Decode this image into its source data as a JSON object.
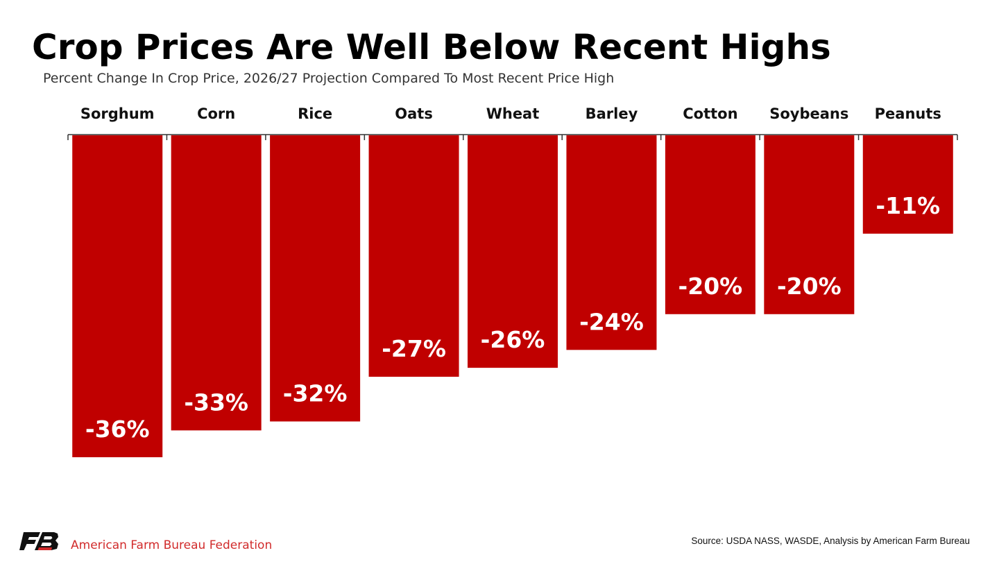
{
  "title": "Crop Prices Are Well Below Recent Highs",
  "subtitle": "Percent Change In Crop Price, 2026/27 Projection Compared To Most Recent Price High",
  "colors": {
    "bar": "#c00000",
    "bar_label": "#ffffff",
    "axis": "#333333",
    "org_text": "#d12b2b"
  },
  "chart_data": {
    "type": "bar",
    "categories": [
      "Sorghum",
      "Corn",
      "Rice",
      "Oats",
      "Wheat",
      "Barley",
      "Cotton",
      "Soybeans",
      "Peanuts"
    ],
    "values": [
      -36,
      -33,
      -32,
      -27,
      -26,
      -24,
      -20,
      -20,
      -11
    ],
    "data_labels": [
      "-36%",
      "-33%",
      "-32%",
      "-27%",
      "-26%",
      "-24%",
      "-20%",
      "-20%",
      "-11%"
    ],
    "unit": "%",
    "ylim": [
      -36,
      0
    ],
    "orientation": "downward from baseline",
    "category_label_position": "top",
    "grid": false,
    "legend": false
  },
  "footer": {
    "logo_icon": "afbf-logo-icon",
    "organization": "American Farm Bureau Federation",
    "source": "Source: USDA NASS, WASDE, Analysis by American Farm Bureau"
  }
}
